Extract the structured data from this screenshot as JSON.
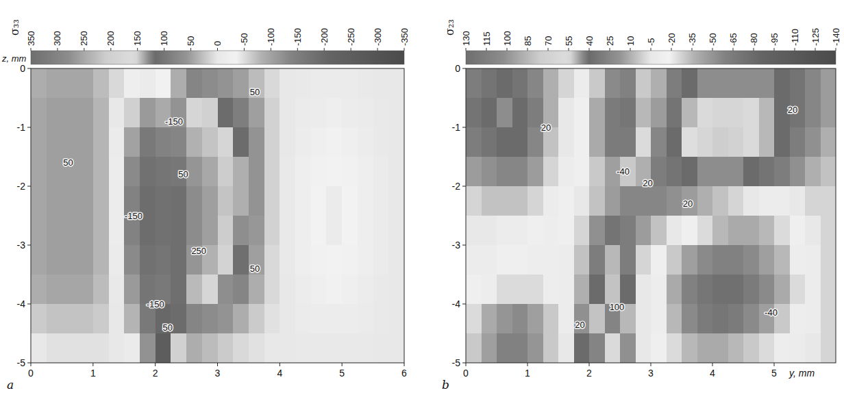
{
  "chart_data": [
    {
      "type": "heatmap",
      "panel": "a",
      "title": "σ₃₃",
      "ylabel": "z, mm",
      "xlim": [
        0,
        6
      ],
      "ylim": [
        -5,
        0
      ],
      "xticks": [
        0,
        1,
        2,
        3,
        4,
        5,
        6
      ],
      "yticks": [
        0,
        -1,
        -2,
        -3,
        -4,
        -5
      ],
      "color_range": [
        350,
        -350
      ],
      "color_ticks": [
        350,
        300,
        250,
        200,
        150,
        100,
        50,
        0,
        -50,
        -100,
        -150,
        -200,
        -250,
        -300,
        -350
      ],
      "x": [
        0.125,
        0.375,
        0.625,
        0.875,
        1.125,
        1.375,
        1.625,
        1.875,
        2.125,
        2.375,
        2.625,
        2.875,
        3.125,
        3.375,
        3.625,
        3.875,
        4.125,
        4.375,
        4.625,
        4.875,
        5.125,
        5.375,
        5.625,
        5.875
      ],
      "y": [
        -0.25,
        -0.75,
        -1.25,
        -1.75,
        -2.25,
        -2.75,
        -3.25,
        -3.75,
        -4.25,
        -4.75
      ],
      "cells": [
        [
          40,
          45,
          45,
          45,
          30,
          10,
          -20,
          -40,
          -30,
          40,
          80,
          70,
          60,
          50,
          30,
          10,
          0,
          -5,
          -10,
          -10,
          -10,
          -5,
          0,
          0
        ],
        [
          45,
          50,
          50,
          50,
          35,
          0,
          -60,
          -110,
          -90,
          60,
          180,
          150,
          120,
          90,
          50,
          15,
          0,
          -10,
          -15,
          -20,
          -15,
          -10,
          -5,
          0
        ],
        [
          45,
          50,
          50,
          50,
          35,
          -10,
          -100,
          -160,
          -140,
          80,
          240,
          220,
          180,
          120,
          60,
          15,
          0,
          -15,
          -25,
          -30,
          -25,
          -15,
          -5,
          0
        ],
        [
          45,
          50,
          50,
          50,
          35,
          -15,
          -130,
          -180,
          -170,
          100,
          270,
          250,
          210,
          140,
          60,
          15,
          -5,
          -20,
          -30,
          -35,
          -30,
          -20,
          -10,
          0
        ],
        [
          45,
          50,
          50,
          50,
          35,
          -15,
          -140,
          -190,
          -180,
          110,
          280,
          260,
          220,
          140,
          60,
          15,
          -5,
          -20,
          -35,
          -40,
          -35,
          -20,
          -10,
          0
        ],
        [
          45,
          50,
          50,
          50,
          35,
          -15,
          -140,
          -190,
          -180,
          110,
          280,
          260,
          210,
          130,
          55,
          15,
          -5,
          -20,
          -35,
          -40,
          -35,
          -20,
          -10,
          0
        ],
        [
          45,
          50,
          50,
          50,
          35,
          -10,
          -130,
          -180,
          -170,
          110,
          270,
          240,
          190,
          110,
          50,
          10,
          -5,
          -20,
          -30,
          -35,
          -30,
          -20,
          -10,
          0
        ],
        [
          40,
          45,
          45,
          45,
          30,
          -5,
          -110,
          -170,
          -160,
          110,
          230,
          180,
          130,
          80,
          40,
          10,
          0,
          -15,
          -25,
          -30,
          -25,
          -15,
          -5,
          0
        ],
        [
          20,
          25,
          25,
          25,
          20,
          0,
          -80,
          -160,
          -200,
          120,
          80,
          70,
          60,
          40,
          20,
          5,
          0,
          -10,
          -15,
          -15,
          -15,
          -10,
          -5,
          0
        ],
        [
          0,
          5,
          5,
          5,
          5,
          0,
          -40,
          -120,
          -250,
          150,
          40,
          30,
          20,
          10,
          5,
          0,
          0,
          -5,
          -5,
          -5,
          -5,
          -5,
          0,
          0
        ]
      ],
      "annotations": [
        {
          "text": "50",
          "x": 0.6,
          "y": -1.6
        },
        {
          "text": "-150",
          "x": 1.65,
          "y": -2.5
        },
        {
          "text": "-150",
          "x": 2.3,
          "y": -0.9
        },
        {
          "text": "50",
          "x": 2.45,
          "y": -1.8
        },
        {
          "text": "250",
          "x": 2.7,
          "y": -3.1
        },
        {
          "text": "50",
          "x": 3.6,
          "y": -0.4
        },
        {
          "text": "50",
          "x": 3.6,
          "y": -3.4
        },
        {
          "text": "-150",
          "x": 2.0,
          "y": -4.0
        },
        {
          "text": "50",
          "x": 2.2,
          "y": -4.4
        }
      ]
    },
    {
      "type": "heatmap",
      "panel": "b",
      "title": "σ₂₃",
      "xlabel": "y, mm",
      "xlim": [
        0,
        6
      ],
      "ylim": [
        -5,
        0
      ],
      "xticks": [
        0,
        1,
        2,
        3,
        4,
        5
      ],
      "yticks": [
        0,
        -1,
        -2,
        -3,
        -4,
        -5
      ],
      "color_range": [
        130,
        -140
      ],
      "color_ticks": [
        130,
        115,
        100,
        85,
        70,
        55,
        40,
        25,
        10,
        -5,
        -20,
        -35,
        -50,
        -65,
        -80,
        -95,
        -110,
        -125,
        -140
      ],
      "x": [
        0.125,
        0.375,
        0.625,
        0.875,
        1.125,
        1.375,
        1.625,
        1.875,
        2.125,
        2.375,
        2.625,
        2.875,
        3.125,
        3.375,
        3.625,
        3.875,
        4.125,
        4.375,
        4.625,
        4.875,
        5.125,
        5.375,
        5.625,
        5.875
      ],
      "y": [
        -0.25,
        -0.75,
        -1.25,
        -1.75,
        -2.25,
        -2.75,
        -3.25,
        -3.75,
        -4.25,
        -4.75
      ],
      "cells": [
        [
          30,
          35,
          40,
          35,
          25,
          10,
          0,
          -10,
          -30,
          -55,
          -60,
          -30,
          10,
          30,
          40,
          45,
          45,
          45,
          45,
          45,
          40,
          35,
          25,
          15
        ],
        [
          35,
          40,
          45,
          40,
          30,
          10,
          -5,
          -15,
          -40,
          -65,
          -70,
          -35,
          15,
          35,
          50,
          60,
          65,
          65,
          60,
          50,
          40,
          35,
          25,
          15
        ],
        [
          30,
          35,
          40,
          40,
          25,
          5,
          -5,
          -15,
          -40,
          -65,
          -65,
          -25,
          25,
          40,
          55,
          65,
          75,
          70,
          60,
          50,
          40,
          30,
          20,
          10
        ],
        [
          15,
          20,
          25,
          25,
          15,
          0,
          -10,
          -15,
          -30,
          -45,
          -30,
          10,
          30,
          35,
          40,
          45,
          45,
          45,
          40,
          35,
          30,
          20,
          10,
          5
        ],
        [
          0,
          5,
          5,
          5,
          0,
          -10,
          -15,
          -5,
          5,
          15,
          25,
          25,
          25,
          20,
          15,
          10,
          5,
          0,
          -5,
          -10,
          -10,
          -5,
          0,
          0
        ],
        [
          -5,
          -5,
          -10,
          -10,
          -15,
          -20,
          -15,
          0,
          20,
          35,
          30,
          15,
          5,
          -5,
          -15,
          -25,
          -35,
          -40,
          -40,
          -35,
          -25,
          -15,
          -5,
          0
        ],
        [
          -10,
          -10,
          -15,
          -15,
          -20,
          -20,
          -10,
          5,
          30,
          50,
          30,
          0,
          -15,
          -30,
          -45,
          -55,
          -60,
          -60,
          -55,
          -45,
          -35,
          -20,
          -10,
          0
        ],
        [
          -15,
          -20,
          -25,
          -25,
          -25,
          -20,
          -10,
          10,
          40,
          80,
          40,
          -5,
          -20,
          -40,
          -60,
          -70,
          -75,
          -75,
          -65,
          -55,
          -40,
          -25,
          -10,
          0
        ],
        [
          -25,
          -40,
          -50,
          -55,
          -45,
          -30,
          -10,
          20,
          80,
          110,
          50,
          -5,
          -20,
          -35,
          -55,
          -65,
          -70,
          -65,
          -55,
          -45,
          -30,
          -20,
          -10,
          0
        ],
        [
          -30,
          -45,
          -60,
          -60,
          -50,
          -30,
          -5,
          40,
          110,
          60,
          20,
          -5,
          -15,
          -25,
          -35,
          -40,
          -40,
          -35,
          -30,
          -25,
          -20,
          -10,
          -5,
          0
        ]
      ],
      "annotations": [
        {
          "text": "20",
          "x": 1.3,
          "y": -1.0
        },
        {
          "text": "20",
          "x": 5.3,
          "y": -0.7
        },
        {
          "text": "-40",
          "x": 2.55,
          "y": -1.75
        },
        {
          "text": "20",
          "x": 2.95,
          "y": -1.95
        },
        {
          "text": "20",
          "x": 3.6,
          "y": -2.3
        },
        {
          "text": "20",
          "x": 1.85,
          "y": -4.35
        },
        {
          "text": "100",
          "x": 2.45,
          "y": -4.05
        },
        {
          "text": "-40",
          "x": 4.95,
          "y": -4.15
        }
      ]
    }
  ]
}
